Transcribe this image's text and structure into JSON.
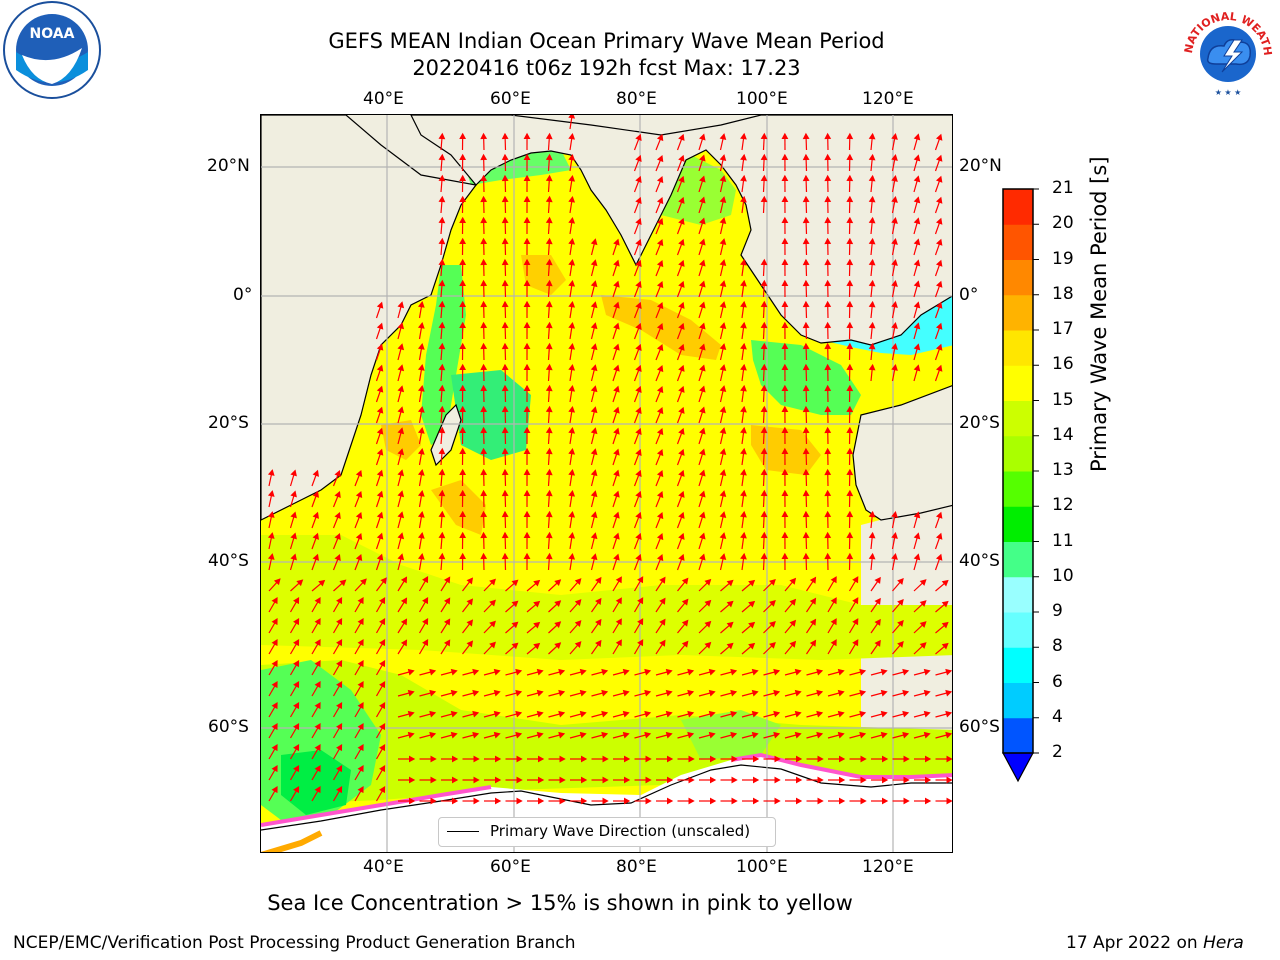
{
  "title_line1": "GEFS MEAN Indian Ocean Primary Wave Mean Period",
  "title_line2": "20220416 t06z 192h fcst   Max: 17.23",
  "logos": {
    "left": "noaa-logo",
    "right": "nws-logo",
    "left_text": "NOAA",
    "nws_text": "NATIONAL WEATHER SERVICE"
  },
  "map": {
    "lon_labels_top": [
      "40°E",
      "60°E",
      "80°E",
      "100°E",
      "120°E"
    ],
    "lon_labels_bottom": [
      "40°E",
      "60°E",
      "80°E",
      "100°E",
      "120°E"
    ],
    "lat_labels_left": [
      "20°N",
      "0°",
      "20°S",
      "40°S",
      "60°S"
    ],
    "lat_labels_right": [
      "20°N",
      "0°",
      "20°S",
      "40°S",
      "60°S"
    ],
    "legend_label": "Primary Wave Direction (unscaled)",
    "arrow_color": "#ff0000",
    "land_color": "#f0eee0"
  },
  "colorbar": {
    "label": "Primary Wave Mean Period [s]",
    "ticks": [
      "2",
      "4",
      "6",
      "8",
      "9",
      "10",
      "11",
      "12",
      "13",
      "14",
      "15",
      "16",
      "17",
      "18",
      "19",
      "20",
      "21"
    ],
    "colors": [
      "#0055ff",
      "#00ccff",
      "#00ffff",
      "#66ffff",
      "#99ffff",
      "#44ff88",
      "#00ee00",
      "#55ff00",
      "#aaff00",
      "#ccff00",
      "#ffff00",
      "#ffe600",
      "#ffb300",
      "#ff8800",
      "#ff5500",
      "#ff2a00",
      "#ff0000"
    ],
    "extend_color": "#0000ff"
  },
  "bottom_note": "Sea Ice Concentration > 15% is shown in pink to yellow",
  "footer_left": "NCEP/EMC/Verification Post Processing Product Generation Branch",
  "footer_right_date": "17 Apr 2022 on ",
  "footer_right_host": "Hera"
}
